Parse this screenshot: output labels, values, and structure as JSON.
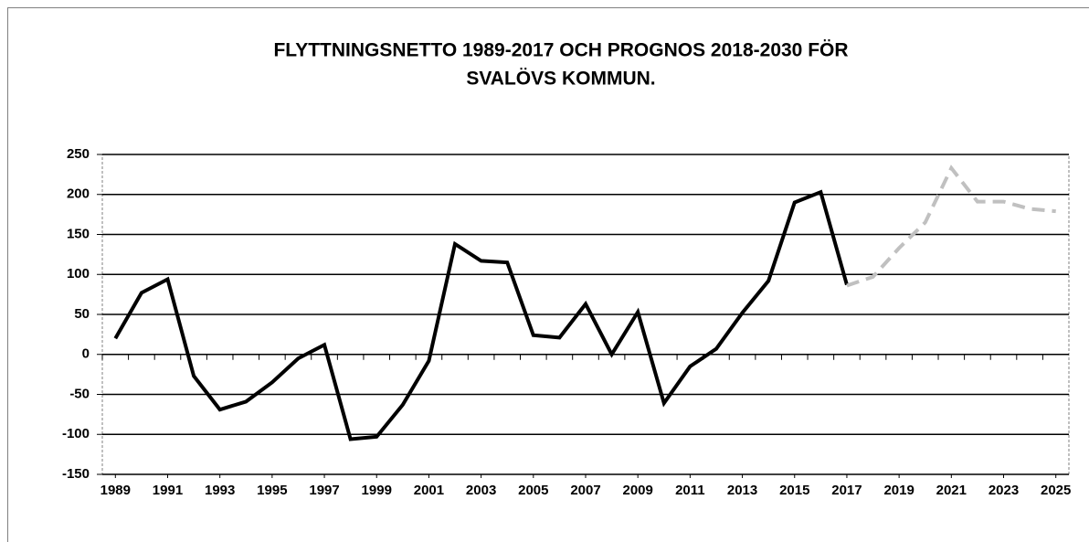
{
  "chart_data": {
    "type": "line",
    "title": [
      "FLYTTNINGSNETTO 1989-2017 OCH PROGNOS 2018-2030 FÖR",
      "SVALÖVS KOMMUN."
    ],
    "x": [
      1989,
      1990,
      1991,
      1992,
      1993,
      1994,
      1995,
      1996,
      1997,
      1998,
      1999,
      2000,
      2001,
      2002,
      2003,
      2004,
      2005,
      2006,
      2007,
      2008,
      2009,
      2010,
      2011,
      2012,
      2013,
      2014,
      2015,
      2016,
      2017,
      2018,
      2019,
      2020,
      2021,
      2022,
      2023,
      2024,
      2025
    ],
    "xlim": [
      1988.5,
      2025.5
    ],
    "xticks": [
      1989,
      1991,
      1993,
      1995,
      1997,
      1999,
      2001,
      2003,
      2005,
      2007,
      2009,
      2011,
      2013,
      2015,
      2017,
      2019,
      2021,
      2023,
      2025
    ],
    "series": [
      {
        "color": "#000000",
        "dashed": false,
        "values": [
          20,
          77,
          94,
          -27,
          -69,
          -59,
          -35,
          -5,
          12,
          -106,
          -103,
          -63,
          -8,
          138,
          117,
          115,
          24,
          21,
          63,
          0,
          53,
          -61,
          -15,
          7,
          52,
          92,
          190,
          203,
          87,
          null,
          null,
          null,
          null,
          null,
          null,
          null,
          null
        ]
      },
      {
        "color": "#c0c0c0",
        "dashed": true,
        "values": [
          null,
          null,
          null,
          null,
          null,
          null,
          null,
          null,
          null,
          null,
          null,
          null,
          null,
          null,
          null,
          null,
          null,
          null,
          null,
          null,
          null,
          null,
          null,
          null,
          null,
          null,
          null,
          null,
          86,
          97,
          133,
          165,
          233,
          191,
          191,
          182,
          179
        ]
      }
    ],
    "ylim": [
      -150,
      250
    ],
    "yticks": [
      -150,
      -100,
      -50,
      0,
      50,
      100,
      150,
      200,
      250
    ],
    "grid": true
  }
}
